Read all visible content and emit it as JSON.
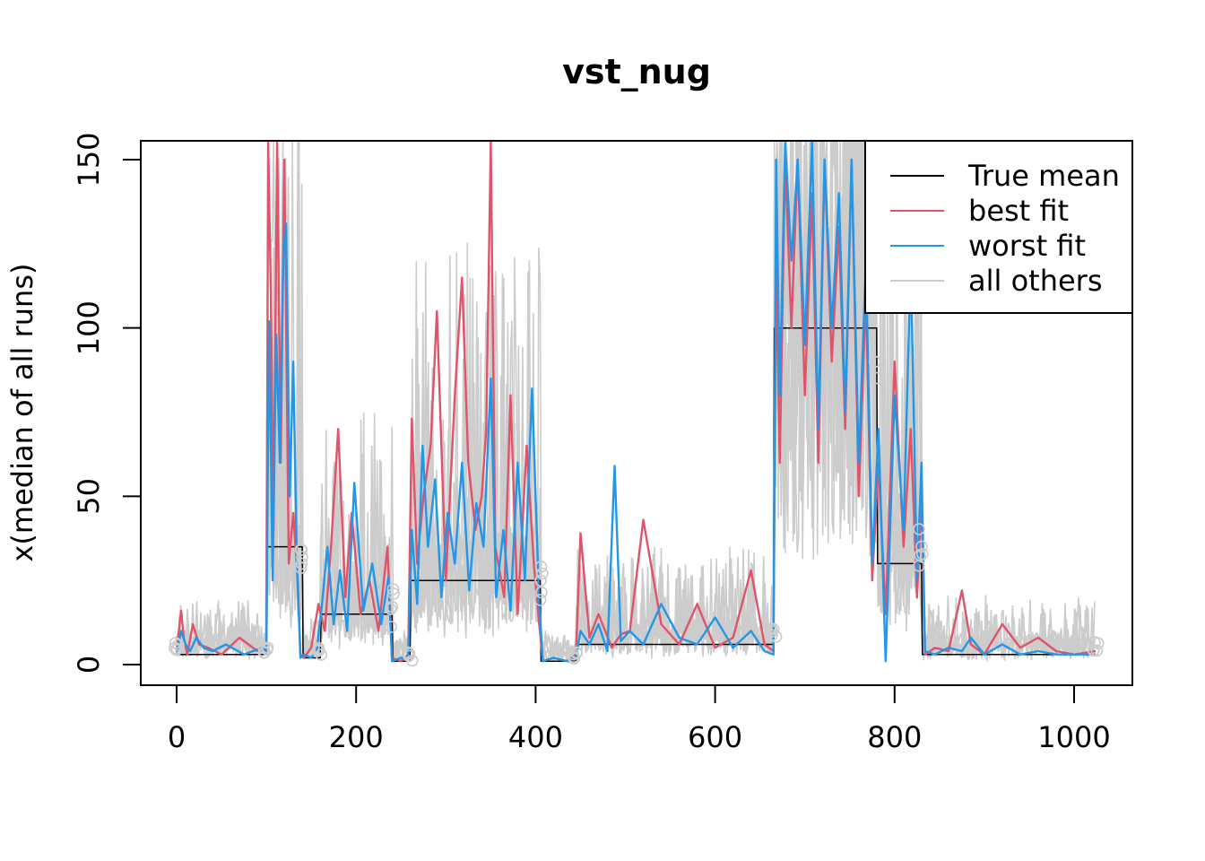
{
  "chart_data": {
    "type": "line",
    "title": "vst_nug",
    "xlabel": "",
    "ylabel": "x(median of all runs)",
    "xlim": [
      0,
      1024
    ],
    "ylim": [
      0,
      155
    ],
    "x_ticks": [
      0,
      200,
      400,
      600,
      800,
      1000
    ],
    "y_ticks": [
      0,
      50,
      100,
      150
    ],
    "legend": {
      "placement": "top-right",
      "entries": [
        {
          "label": "True mean",
          "color": "#000000"
        },
        {
          "label": "best fit",
          "color": "#DF536B"
        },
        {
          "label": "worst fit",
          "color": "#2297E6"
        },
        {
          "label": "all others",
          "color": "#CCCCCC"
        }
      ]
    },
    "series": [
      {
        "name": "True mean",
        "color": "#000000",
        "x": [
          0,
          100,
          101,
          140,
          141,
          160,
          161,
          240,
          241,
          260,
          261,
          405,
          406,
          445,
          446,
          665,
          666,
          780,
          781,
          830,
          831,
          1024
        ],
        "values": [
          3,
          3,
          35,
          35,
          2,
          2,
          15,
          15,
          1,
          1,
          25,
          25,
          1,
          1,
          6,
          6,
          100,
          100,
          30,
          30,
          3,
          3
        ]
      },
      {
        "name": "best fit",
        "color": "#DF536B",
        "x": [
          0,
          5,
          8,
          12,
          18,
          25,
          35,
          50,
          70,
          90,
          100,
          102,
          105,
          108,
          112,
          116,
          120,
          125,
          130,
          135,
          138,
          142,
          150,
          158,
          165,
          172,
          180,
          188,
          195,
          205,
          215,
          225,
          235,
          240,
          250,
          258,
          262,
          268,
          275,
          283,
          290,
          300,
          310,
          318,
          325,
          333,
          340,
          345,
          350,
          355,
          365,
          372,
          380,
          390,
          398,
          404,
          408,
          420,
          435,
          445,
          450,
          460,
          470,
          485,
          495,
          505,
          520,
          540,
          560,
          580,
          600,
          620,
          640,
          655,
          665,
          668,
          672,
          678,
          685,
          692,
          700,
          708,
          715,
          722,
          730,
          738,
          745,
          752,
          760,
          768,
          775,
          782,
          790,
          800,
          810,
          818,
          825,
          830,
          834,
          845,
          860,
          875,
          885,
          900,
          920,
          940,
          960,
          980,
          1000,
          1024
        ],
        "values": [
          4,
          16,
          8,
          3,
          12,
          6,
          5,
          3,
          8,
          4,
          5,
          160,
          110,
          40,
          170,
          60,
          150,
          30,
          45,
          25,
          3,
          2,
          5,
          18,
          10,
          35,
          70,
          20,
          45,
          15,
          25,
          10,
          35,
          2,
          1,
          3,
          73,
          30,
          50,
          65,
          105,
          25,
          80,
          115,
          60,
          40,
          50,
          70,
          160,
          35,
          20,
          80,
          15,
          65,
          30,
          12,
          1,
          2,
          1,
          3,
          39,
          8,
          15,
          5,
          9,
          10,
          43,
          12,
          6,
          18,
          5,
          8,
          28,
          6,
          4,
          120,
          60,
          150,
          100,
          150,
          80,
          140,
          60,
          150,
          90,
          130,
          70,
          150,
          50,
          110,
          25,
          60,
          15,
          90,
          35,
          70,
          20,
          50,
          3,
          5,
          4,
          22,
          6,
          3,
          12,
          5,
          8,
          4,
          3,
          4
        ]
      },
      {
        "name": "worst fit",
        "color": "#2297E6",
        "x": [
          0,
          5,
          10,
          15,
          22,
          30,
          40,
          55,
          75,
          95,
          100,
          103,
          107,
          111,
          115,
          119,
          122,
          126,
          130,
          134,
          138,
          142,
          150,
          156,
          162,
          168,
          175,
          182,
          190,
          198,
          208,
          218,
          228,
          236,
          240,
          250,
          258,
          262,
          268,
          274,
          280,
          288,
          295,
          302,
          310,
          318,
          326,
          334,
          342,
          350,
          356,
          364,
          372,
          380,
          388,
          396,
          404,
          408,
          420,
          435,
          445,
          450,
          460,
          470,
          480,
          488,
          495,
          505,
          520,
          540,
          560,
          580,
          600,
          620,
          640,
          655,
          665,
          668,
          672,
          678,
          685,
          692,
          700,
          708,
          715,
          722,
          730,
          738,
          745,
          752,
          760,
          768,
          775,
          782,
          790,
          800,
          810,
          818,
          825,
          830,
          834,
          845,
          860,
          875,
          885,
          900,
          920,
          940,
          960,
          980,
          1000,
          1024
        ],
        "values": [
          3,
          10,
          6,
          4,
          8,
          5,
          4,
          6,
          3,
          5,
          4,
          102,
          25,
          98,
          60,
          122,
          131,
          50,
          90,
          30,
          2,
          3,
          2,
          4,
          18,
          35,
          12,
          28,
          10,
          54,
          16,
          30,
          12,
          26,
          1,
          2,
          2,
          40,
          18,
          65,
          35,
          55,
          20,
          45,
          30,
          60,
          22,
          48,
          35,
          85,
          20,
          40,
          16,
          60,
          25,
          82,
          18,
          1,
          2,
          1,
          2,
          10,
          6,
          12,
          4,
          59,
          7,
          10,
          6,
          18,
          8,
          6,
          14,
          5,
          10,
          4,
          3,
          150,
          80,
          155,
          120,
          150,
          95,
          160,
          70,
          150,
          100,
          140,
          75,
          150,
          60,
          120,
          30,
          70,
          1,
          80,
          40,
          120,
          25,
          60,
          4,
          3,
          5,
          4,
          8,
          3,
          6,
          3,
          4,
          3,
          3,
          3
        ]
      }
    ]
  }
}
